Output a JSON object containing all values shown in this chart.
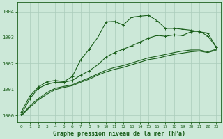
{
  "title": "Graphe pression niveau de la mer (hPa)",
  "background_color": "#cce8d8",
  "grid_color": "#aaccbb",
  "line_color": "#1a5e1a",
  "xlim": [
    -0.5,
    23.5
  ],
  "ylim": [
    999.75,
    1004.35
  ],
  "yticks": [
    1000,
    1001,
    1002,
    1003,
    1004
  ],
  "xticks": [
    0,
    1,
    2,
    3,
    4,
    5,
    6,
    7,
    8,
    9,
    10,
    11,
    12,
    13,
    14,
    15,
    16,
    17,
    18,
    19,
    20,
    21,
    22,
    23
  ],
  "series": [
    {
      "x": [
        0,
        1,
        2,
        3,
        4,
        5,
        6,
        7,
        8,
        9,
        10,
        11,
        12,
        13,
        14,
        15,
        16,
        17,
        18,
        19,
        20,
        21,
        22,
        23
      ],
      "y": [
        1000.15,
        1000.75,
        1001.1,
        1001.3,
        1001.35,
        1001.3,
        1001.5,
        1002.15,
        1002.55,
        1003.0,
        1003.6,
        1003.62,
        1003.48,
        1003.78,
        1003.82,
        1003.85,
        1003.65,
        1003.35,
        1003.35,
        1003.32,
        1003.28,
        1003.22,
        1003.17,
        1002.62
      ],
      "marker": "+"
    },
    {
      "x": [
        0,
        1,
        2,
        3,
        4,
        5,
        6,
        7,
        8,
        9,
        10,
        11,
        12,
        13,
        14,
        15,
        16,
        17,
        18,
        19,
        20,
        21,
        22,
        23
      ],
      "y": [
        1000.05,
        1000.65,
        1001.05,
        1001.2,
        1001.28,
        1001.28,
        1001.35,
        1001.55,
        1001.72,
        1001.95,
        1002.25,
        1002.42,
        1002.55,
        1002.68,
        1002.82,
        1002.98,
        1003.08,
        1003.05,
        1003.1,
        1003.08,
        1003.22,
        1003.25,
        1003.05,
        1002.62
      ],
      "marker": "+"
    },
    {
      "x": [
        0,
        1,
        2,
        3,
        4,
        5,
        6,
        7,
        8,
        9,
        10,
        11,
        12,
        13,
        14,
        15,
        16,
        17,
        18,
        19,
        20,
        21,
        22,
        23
      ],
      "y": [
        1000.0,
        1000.38,
        1000.65,
        1000.88,
        1001.05,
        1001.12,
        1001.18,
        1001.32,
        1001.45,
        1001.6,
        1001.75,
        1001.85,
        1001.92,
        1002.02,
        1002.12,
        1002.22,
        1002.28,
        1002.35,
        1002.42,
        1002.48,
        1002.52,
        1002.52,
        1002.45,
        1002.55
      ],
      "marker": null
    },
    {
      "x": [
        0,
        1,
        2,
        3,
        4,
        5,
        6,
        7,
        8,
        9,
        10,
        11,
        12,
        13,
        14,
        15,
        16,
        17,
        18,
        19,
        20,
        21,
        22,
        23
      ],
      "y": [
        1000.0,
        1000.32,
        1000.6,
        1000.82,
        1001.0,
        1001.08,
        1001.15,
        1001.28,
        1001.4,
        1001.55,
        1001.68,
        1001.78,
        1001.85,
        1001.95,
        1002.05,
        1002.15,
        1002.2,
        1002.28,
        1002.35,
        1002.4,
        1002.45,
        1002.48,
        1002.42,
        1002.52
      ],
      "marker": null
    }
  ]
}
